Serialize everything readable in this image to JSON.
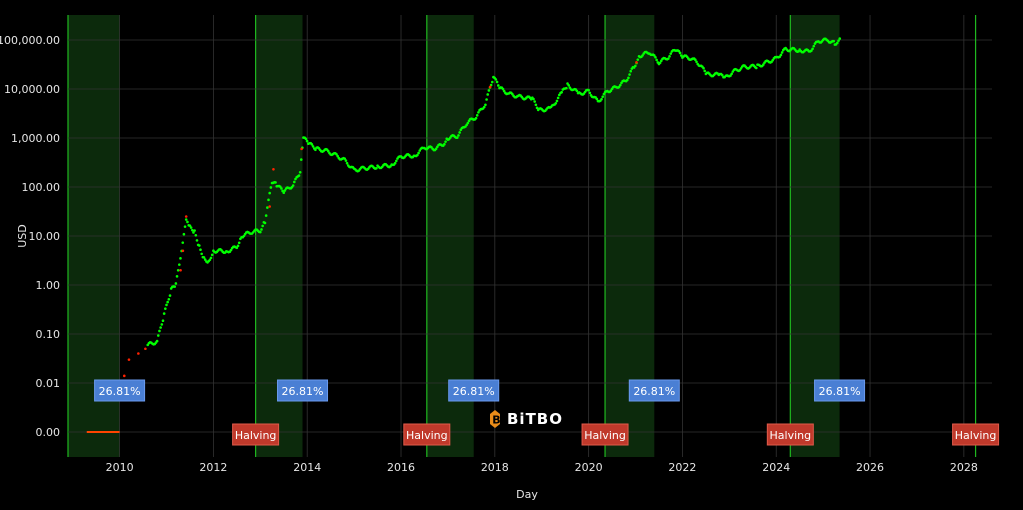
{
  "chart_data": {
    "type": "scatter",
    "xlabel": "Day",
    "ylabel": "USD",
    "y_scale": "log",
    "y_tick_labels": [
      "0.00",
      "0.01",
      "0.10",
      "1.00",
      "10.00",
      "100.00",
      "1,000.00",
      "10,000.00",
      "100,000.00"
    ],
    "x_tick_labels": [
      "2010",
      "2012",
      "2014",
      "2016",
      "2018",
      "2020",
      "2022",
      "2024",
      "2026",
      "2028"
    ],
    "xlim": [
      2008.9,
      2028.6
    ],
    "grid": true,
    "cycle_bands": [
      {
        "start": 2008.9,
        "end": 2010.0,
        "label": "26.81%"
      },
      {
        "start": 2012.9,
        "end": 2013.9,
        "label": "26.81%"
      },
      {
        "start": 2016.55,
        "end": 2017.55,
        "label": "26.81%"
      },
      {
        "start": 2020.35,
        "end": 2021.4,
        "label": "26.81%"
      },
      {
        "start": 2024.3,
        "end": 2025.35,
        "label": "26.81%"
      }
    ],
    "halvings": [
      {
        "date": 2012.9,
        "label": "Halving"
      },
      {
        "date": 2016.55,
        "label": "Halving"
      },
      {
        "date": 2020.35,
        "label": "Halving"
      },
      {
        "date": 2024.3,
        "label": "Halving"
      },
      {
        "date": 2028.25,
        "label": "Halving"
      }
    ],
    "series": [
      {
        "color": "#00ff00",
        "points": [
          [
            2010.6,
            0.06
          ],
          [
            2010.8,
            0.07
          ],
          [
            2010.95,
            0.25
          ],
          [
            2011.1,
            0.8
          ],
          [
            2011.2,
            1.0
          ],
          [
            2011.42,
            20
          ],
          [
            2011.5,
            15
          ],
          [
            2011.6,
            12
          ],
          [
            2011.7,
            6
          ],
          [
            2011.8,
            3.5
          ],
          [
            2011.9,
            3
          ],
          [
            2012.0,
            5
          ],
          [
            2012.3,
            4.9
          ],
          [
            2012.5,
            6
          ],
          [
            2012.6,
            10
          ],
          [
            2012.8,
            12
          ],
          [
            2013.0,
            13
          ],
          [
            2013.1,
            20
          ],
          [
            2013.25,
            130
          ],
          [
            2013.35,
            110
          ],
          [
            2013.5,
            80
          ],
          [
            2013.7,
            110
          ],
          [
            2013.85,
            200
          ],
          [
            2013.92,
            1000
          ],
          [
            2014.05,
            750
          ],
          [
            2014.2,
            600
          ],
          [
            2014.4,
            550
          ],
          [
            2014.6,
            450
          ],
          [
            2014.8,
            350
          ],
          [
            2015.0,
            220
          ],
          [
            2015.2,
            240
          ],
          [
            2015.5,
            260
          ],
          [
            2015.8,
            280
          ],
          [
            2016.0,
            420
          ],
          [
            2016.3,
            440
          ],
          [
            2016.5,
            650
          ],
          [
            2016.7,
            600
          ],
          [
            2016.9,
            750
          ],
          [
            2017.0,
            1000
          ],
          [
            2017.2,
            1100
          ],
          [
            2017.4,
            2000
          ],
          [
            2017.6,
            2700
          ],
          [
            2017.8,
            5000
          ],
          [
            2017.97,
            18000
          ],
          [
            2018.1,
            10500
          ],
          [
            2018.3,
            8000
          ],
          [
            2018.5,
            7000
          ],
          [
            2018.8,
            6300
          ],
          [
            2018.95,
            3700
          ],
          [
            2019.2,
            4000
          ],
          [
            2019.45,
            9000
          ],
          [
            2019.55,
            12000
          ],
          [
            2019.8,
            8000
          ],
          [
            2020.0,
            9000
          ],
          [
            2020.2,
            5500
          ],
          [
            2020.4,
            9000
          ],
          [
            2020.6,
            11000
          ],
          [
            2020.8,
            15000
          ],
          [
            2020.97,
            29000
          ],
          [
            2021.1,
            48000
          ],
          [
            2021.3,
            57000
          ],
          [
            2021.5,
            35000
          ],
          [
            2021.7,
            45000
          ],
          [
            2021.85,
            65000
          ],
          [
            2022.0,
            46000
          ],
          [
            2022.2,
            42000
          ],
          [
            2022.4,
            30000
          ],
          [
            2022.5,
            20000
          ],
          [
            2022.8,
            19500
          ],
          [
            2022.9,
            16500
          ],
          [
            2023.1,
            23000
          ],
          [
            2023.3,
            28000
          ],
          [
            2023.6,
            29000
          ],
          [
            2023.8,
            35000
          ],
          [
            2024.0,
            42000
          ],
          [
            2024.2,
            65000
          ],
          [
            2024.5,
            62000
          ],
          [
            2024.7,
            58000
          ],
          [
            2024.9,
            95000
          ],
          [
            2025.1,
            100000
          ],
          [
            2025.25,
            85000
          ],
          [
            2025.38,
            104000
          ]
        ]
      },
      {
        "color": "#ff2200",
        "points": [
          [
            2010.05,
            0.005
          ],
          [
            2010.1,
            0.014
          ],
          [
            2010.2,
            0.03
          ],
          [
            2010.4,
            0.04
          ],
          [
            2010.55,
            0.05
          ],
          [
            2011.3,
            2
          ],
          [
            2011.35,
            5
          ],
          [
            2011.42,
            25
          ],
          [
            2013.2,
            40
          ],
          [
            2013.28,
            230
          ],
          [
            2013.88,
            600
          ],
          [
            2017.9,
            11000
          ],
          [
            2021.02,
            35000
          ]
        ]
      }
    ],
    "annotations": [
      {
        "type": "flat_segment",
        "x": [
          2009.3,
          2010.0
        ],
        "y": 0.001,
        "color": "#ff4400"
      }
    ]
  },
  "watermark": {
    "text": "BiTBO"
  }
}
